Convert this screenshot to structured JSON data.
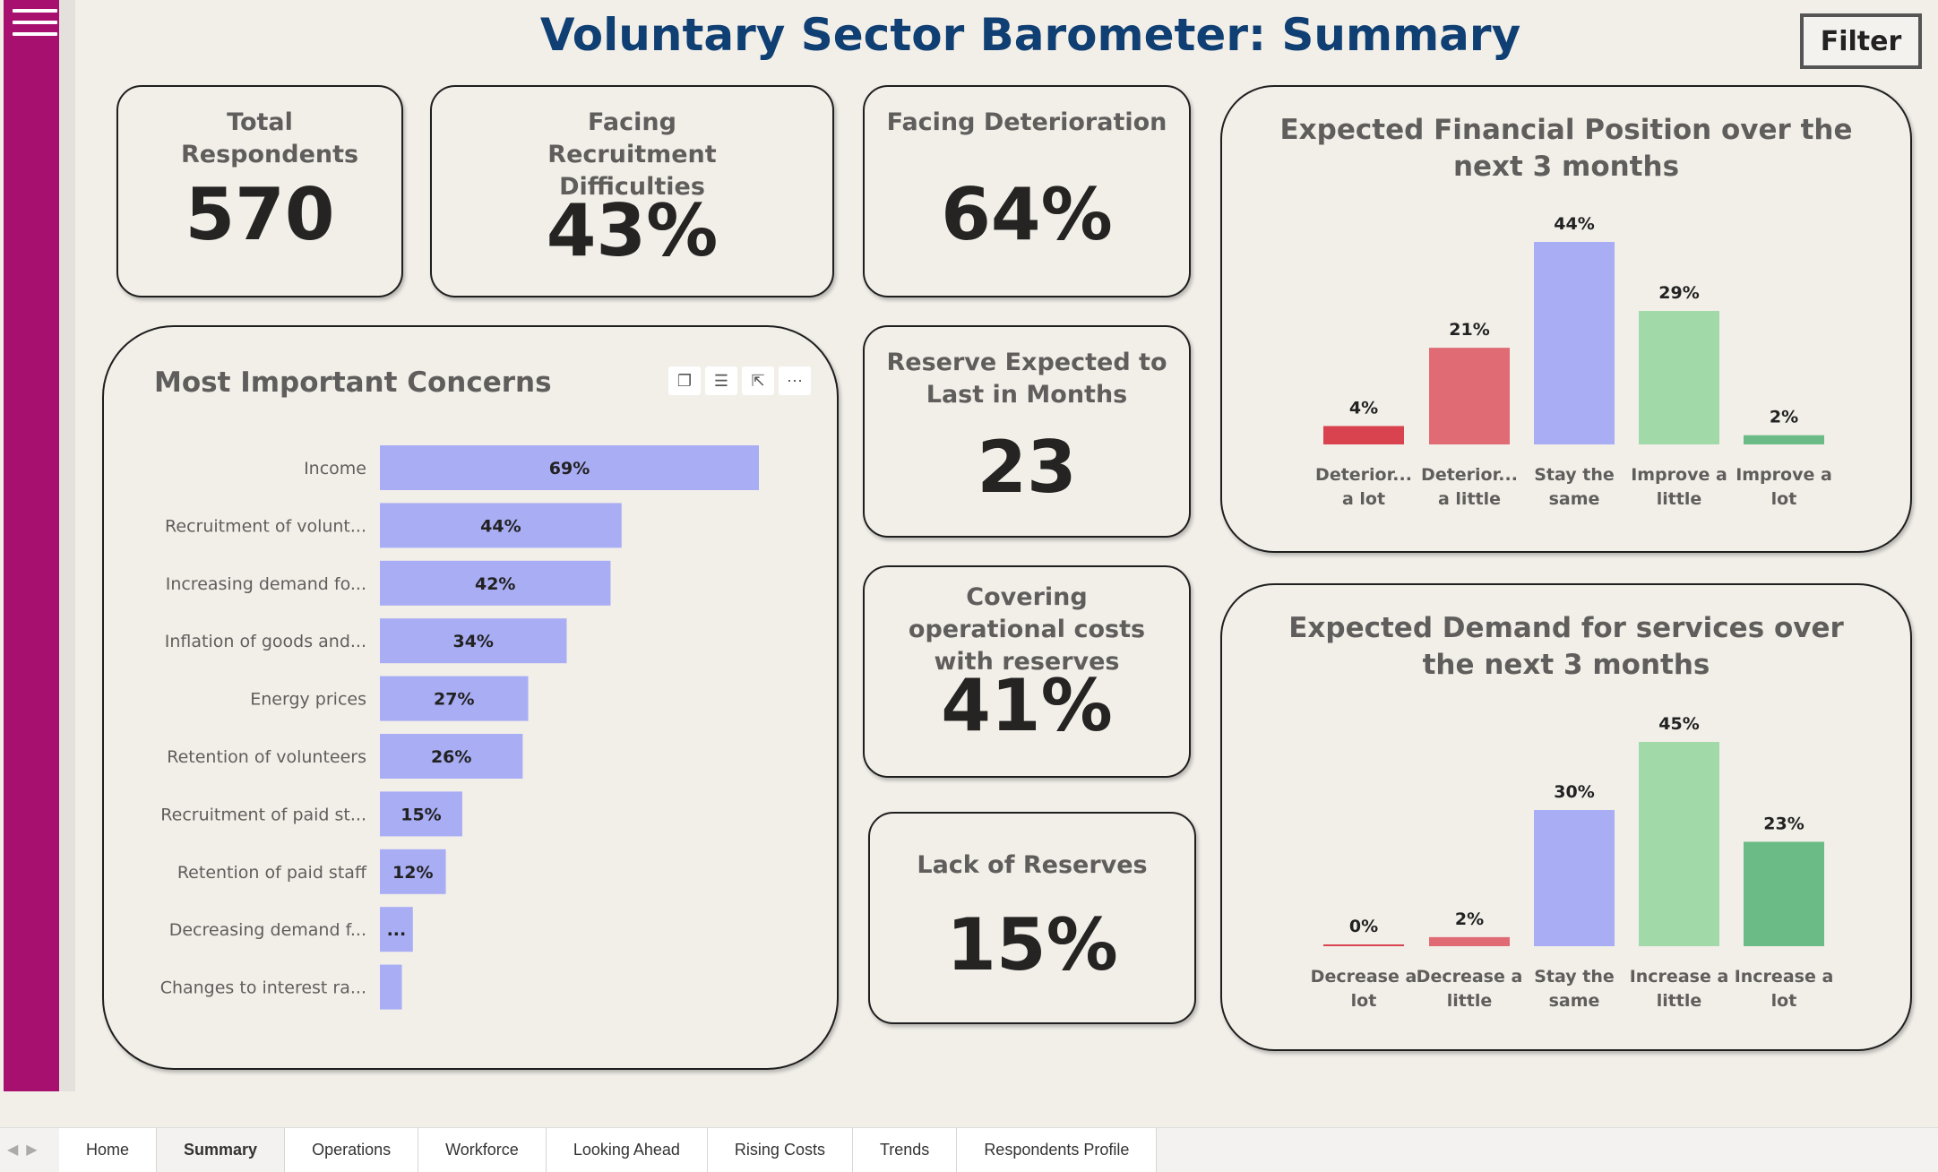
{
  "header": {
    "title": "Voluntary Sector Barometer: Summary",
    "filter_label": "Filter"
  },
  "kpis": {
    "total_respondents": {
      "label": "Total Respondents",
      "value": "570"
    },
    "recruitment": {
      "label": "Facing Recruitment Difficulties",
      "value": "43%"
    },
    "deterioration": {
      "label": "Facing Deterioration",
      "value": "64%"
    },
    "reserve_months": {
      "label": "Reserve Expected to Last in Months",
      "value": "23"
    },
    "covering_costs": {
      "label": "Covering operational costs with reserves",
      "value": "41%"
    },
    "lack_reserves": {
      "label": "Lack of Reserves",
      "value": "15%"
    }
  },
  "concerns": {
    "title": "Most Important Concerns"
  },
  "tabs": [
    "Home",
    "Summary",
    "Operations",
    "Workforce",
    "Looking Ahead",
    "Rising Costs",
    "Trends",
    "Respondents Profile"
  ],
  "active_tab": "Summary",
  "colors": {
    "accent": "#a8106f",
    "title": "#0f3f73",
    "bar_blue": "#a9adf4",
    "deteriorate_lot": "#d9434f",
    "deteriorate_little": "#e06b74",
    "neutral": "#a9adf4",
    "improve_little": "#a1d9a8",
    "improve_lot": "#6bbb86"
  },
  "chart_data": [
    {
      "type": "bar",
      "orientation": "horizontal",
      "title": "Most Important Concerns",
      "categories": [
        "Income",
        "Recruitment of volunt...",
        "Increasing demand fo...",
        "Inflation of goods and...",
        "Energy prices",
        "Retention of volunteers",
        "Recruitment of paid st...",
        "Retention of paid staff",
        "Decreasing demand f...",
        "Changes to interest ra..."
      ],
      "values": [
        69,
        44,
        42,
        34,
        27,
        26,
        15,
        12,
        6,
        4
      ],
      "data_labels": [
        "69%",
        "44%",
        "42%",
        "34%",
        "27%",
        "26%",
        "15%",
        "12%",
        "...",
        ""
      ]
    },
    {
      "type": "bar",
      "title": "Expected Financial Position over the next 3 months",
      "categories": [
        "Deterior... a lot",
        "Deterior... a little",
        "Stay the same",
        "Improve a little",
        "Improve a lot"
      ],
      "values": [
        4,
        21,
        44,
        29,
        2
      ],
      "data_labels": [
        "4%",
        "21%",
        "44%",
        "29%",
        "2%"
      ],
      "colors": [
        "#d9434f",
        "#e06b74",
        "#a9adf4",
        "#a1d9a8",
        "#6bbb86"
      ]
    },
    {
      "type": "bar",
      "title": "Expected Demand for services over the next 3 months",
      "categories": [
        "Decrease a lot",
        "Decrease a little",
        "Stay the same",
        "Increase a little",
        "Increase a lot"
      ],
      "values": [
        0,
        2,
        30,
        45,
        23
      ],
      "data_labels": [
        "0%",
        "2%",
        "30%",
        "45%",
        "23%"
      ],
      "colors": [
        "#d9434f",
        "#e06b74",
        "#a9adf4",
        "#a1d9a8",
        "#6bbb86"
      ]
    }
  ]
}
